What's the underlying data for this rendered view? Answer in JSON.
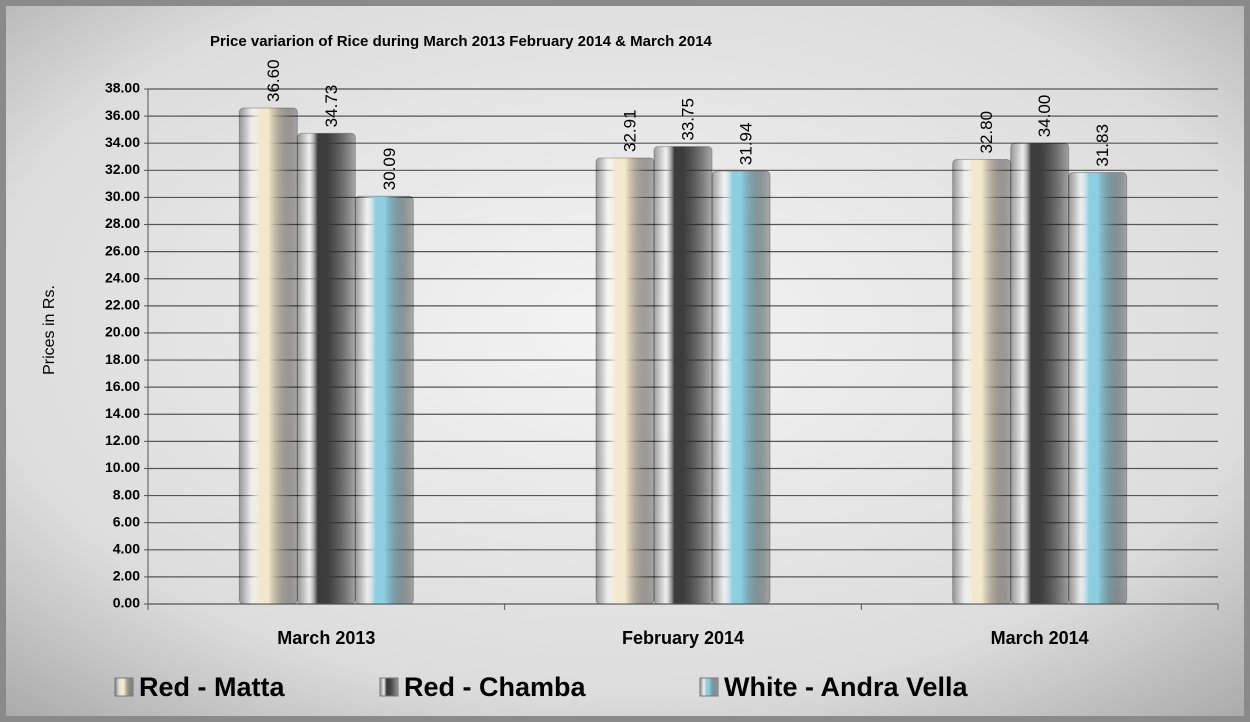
{
  "chart_data": {
    "type": "bar",
    "title": "Price variarion of Rice during March 2013 February 2014 & March  2014",
    "y_label": "Prices in Rs.",
    "categories": [
      "March 2013",
      "February 2014",
      "March 2014"
    ],
    "series": [
      {
        "name": "Red - Matta",
        "color": "#f2e8cc",
        "values": [
          36.6,
          32.91,
          32.8
        ],
        "value_labels": [
          "36.60",
          "32.91",
          "32.80"
        ]
      },
      {
        "name": "Red - Chamba",
        "color": "#3c3c3c",
        "values": [
          34.73,
          33.75,
          34.0
        ],
        "value_labels": [
          "34.73",
          "33.75",
          "34.00"
        ]
      },
      {
        "name": "White - Andra Vella",
        "color": "#8ccfe0",
        "values": [
          30.09,
          31.94,
          31.83
        ],
        "value_labels": [
          "30.09",
          "31.94",
          "31.83"
        ]
      }
    ],
    "ylim": [
      0,
      38
    ],
    "yticks": [
      {
        "value": 0,
        "label": "0.00"
      },
      {
        "value": 2,
        "label": "2.00"
      },
      {
        "value": 4,
        "label": "4.00"
      },
      {
        "value": 6,
        "label": "6.00"
      },
      {
        "value": 8,
        "label": "8.00"
      },
      {
        "value": 10,
        "label": "10.00"
      },
      {
        "value": 12,
        "label": "12.00"
      },
      {
        "value": 14,
        "label": "14.00"
      },
      {
        "value": 16,
        "label": "16.00"
      },
      {
        "value": 18,
        "label": "18.00"
      },
      {
        "value": 20,
        "label": "20.00"
      },
      {
        "value": 22,
        "label": "22.00"
      },
      {
        "value": 24,
        "label": "24.00"
      },
      {
        "value": 26,
        "label": "26.00"
      },
      {
        "value": 28,
        "label": "28.00"
      },
      {
        "value": 30,
        "label": "30.00"
      },
      {
        "value": 32,
        "label": "32.00"
      },
      {
        "value": 34,
        "label": "34.00"
      },
      {
        "value": 36,
        "label": "36.00"
      },
      {
        "value": 38,
        "label": "38.00"
      }
    ],
    "grid": true,
    "legend": "bottom"
  }
}
